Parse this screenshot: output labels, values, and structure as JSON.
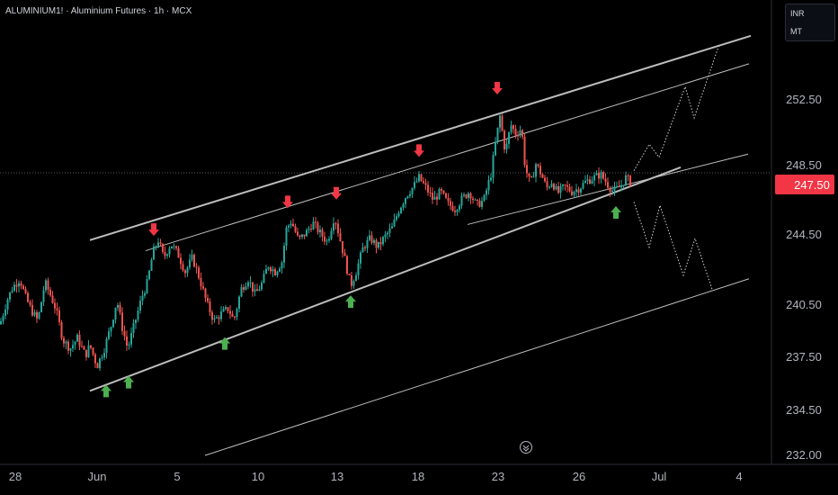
{
  "header": {
    "symbol_title": "ALUMINIUM1! · Aluminium Futures · 1h · MCX"
  },
  "price_scale": {
    "currency": "INR",
    "unit": "MT"
  },
  "colors": {
    "background": "#000000",
    "up_candle": "#26a69a",
    "down_candle": "#ef5350",
    "channel_line": "#bdbdbd",
    "up_arrow": "#4caf50",
    "down_arrow": "#f23645",
    "price_label_bg": "#f23645",
    "axis_text": "#b2b5be",
    "projection": "#d1d4dc"
  },
  "chart_data": {
    "type": "candlestick",
    "title": "ALUMINIUM1! · Aluminium Futures · 1h · MCX",
    "x_tick_labels": [
      "28",
      "Jun",
      "5",
      "10",
      "13",
      "18",
      "23",
      "26",
      "Jul",
      "4"
    ],
    "y_ticks": [
      232.0,
      234.5,
      237.5,
      240.5,
      244.5,
      248.5,
      252.5
    ],
    "y_tick_labels": [
      "232.00",
      "234.50",
      "237.50",
      "240.50",
      "244.50",
      "248.50",
      "252.50"
    ],
    "ylim": [
      231.8,
      257.0
    ],
    "last_price": 247.5,
    "last_price_label": "247.50",
    "price_path": [
      [
        0,
        239.4
      ],
      [
        8,
        240.8
      ],
      [
        14,
        241.5
      ],
      [
        22,
        242.0
      ],
      [
        28,
        241.0
      ],
      [
        35,
        240.2
      ],
      [
        42,
        239.6
      ],
      [
        50,
        241.8
      ],
      [
        55,
        241.2
      ],
      [
        62,
        240.3
      ],
      [
        70,
        238.5
      ],
      [
        78,
        238.0
      ],
      [
        86,
        238.6
      ],
      [
        95,
        237.6
      ],
      [
        100,
        238.2
      ],
      [
        108,
        237.0
      ],
      [
        116,
        238.0
      ],
      [
        124,
        239.4
      ],
      [
        130,
        240.8
      ],
      [
        136,
        239.2
      ],
      [
        142,
        238.0
      ],
      [
        150,
        239.5
      ],
      [
        158,
        241.0
      ],
      [
        164,
        241.8
      ],
      [
        170,
        243.5
      ],
      [
        176,
        244.2
      ],
      [
        182,
        243.2
      ],
      [
        190,
        244.0
      ],
      [
        198,
        243.4
      ],
      [
        206,
        242.4
      ],
      [
        214,
        243.2
      ],
      [
        222,
        242.0
      ],
      [
        230,
        240.6
      ],
      [
        238,
        239.6
      ],
      [
        246,
        240.0
      ],
      [
        254,
        240.3
      ],
      [
        260,
        239.6
      ],
      [
        268,
        241.4
      ],
      [
        276,
        242.0
      ],
      [
        284,
        241.1
      ],
      [
        292,
        241.8
      ],
      [
        298,
        242.8
      ],
      [
        306,
        242.4
      ],
      [
        314,
        243.0
      ],
      [
        318,
        244.8
      ],
      [
        324,
        245.3
      ],
      [
        332,
        244.2
      ],
      [
        340,
        244.6
      ],
      [
        348,
        245.2
      ],
      [
        356,
        244.6
      ],
      [
        364,
        244.1
      ],
      [
        372,
        245.6
      ],
      [
        378,
        244.3
      ],
      [
        384,
        243.0
      ],
      [
        390,
        241.6
      ],
      [
        396,
        242.4
      ],
      [
        404,
        243.8
      ],
      [
        412,
        244.3
      ],
      [
        420,
        243.8
      ],
      [
        428,
        244.4
      ],
      [
        436,
        244.9
      ],
      [
        444,
        246.0
      ],
      [
        452,
        246.8
      ],
      [
        460,
        247.3
      ],
      [
        466,
        247.8
      ],
      [
        474,
        247.2
      ],
      [
        482,
        246.5
      ],
      [
        490,
        247.0
      ],
      [
        498,
        246.3
      ],
      [
        506,
        246.0
      ],
      [
        514,
        246.6
      ],
      [
        522,
        247.0
      ],
      [
        530,
        246.2
      ],
      [
        538,
        246.5
      ],
      [
        546,
        248.0
      ],
      [
        552,
        250.2
      ],
      [
        556,
        251.5
      ],
      [
        562,
        249.3
      ],
      [
        568,
        251.0
      ],
      [
        574,
        250.4
      ],
      [
        580,
        250.8
      ],
      [
        584,
        248.4
      ],
      [
        590,
        247.4
      ],
      [
        596,
        248.6
      ],
      [
        602,
        248.0
      ],
      [
        608,
        247.2
      ],
      [
        614,
        247.6
      ],
      [
        620,
        246.9
      ],
      [
        628,
        247.3
      ],
      [
        636,
        247.0
      ],
      [
        644,
        247.2
      ],
      [
        652,
        247.6
      ],
      [
        660,
        247.8
      ],
      [
        668,
        248.0
      ],
      [
        676,
        247.4
      ],
      [
        682,
        247.0
      ],
      [
        690,
        247.3
      ],
      [
        696,
        247.8
      ],
      [
        702,
        247.5
      ]
    ],
    "channel_lines": [
      {
        "name": "upper",
        "from": [
          100,
          244.2
        ],
        "to": [
          835,
          256.4
        ]
      },
      {
        "name": "upper-inner",
        "from": [
          162,
          243.6
        ],
        "to": [
          833,
          254.7
        ]
      },
      {
        "name": "lower",
        "from": [
          100,
          235.6
        ],
        "to": [
          757,
          248.4
        ]
      },
      {
        "name": "lower-inner",
        "from": [
          520,
          245.1
        ],
        "to": [
          832,
          249.2
        ]
      },
      {
        "name": "bottom-parallel",
        "from": [
          228,
          232.0
        ],
        "to": [
          833,
          242.0
        ]
      }
    ],
    "projections": [
      {
        "name": "bullish-projection",
        "points": [
          [
            705,
            248.2
          ],
          [
            722,
            249.8
          ],
          [
            733,
            249.0
          ],
          [
            762,
            253.3
          ],
          [
            772,
            251.4
          ],
          [
            800,
            255.9
          ]
        ]
      },
      {
        "name": "bearish-projection",
        "points": [
          [
            705,
            246.4
          ],
          [
            722,
            243.8
          ],
          [
            734,
            246.2
          ],
          [
            760,
            242.2
          ],
          [
            773,
            244.3
          ],
          [
            792,
            241.4
          ]
        ]
      }
    ],
    "down_arrows": [
      [
        171,
        244.7
      ],
      [
        320,
        246.3
      ],
      [
        374,
        246.8
      ],
      [
        466,
        249.3
      ],
      [
        553,
        253.1
      ]
    ],
    "up_arrows": [
      [
        118,
        235.7
      ],
      [
        143,
        236.2
      ],
      [
        250,
        238.4
      ],
      [
        390,
        240.8
      ],
      [
        685,
        245.9
      ]
    ]
  }
}
